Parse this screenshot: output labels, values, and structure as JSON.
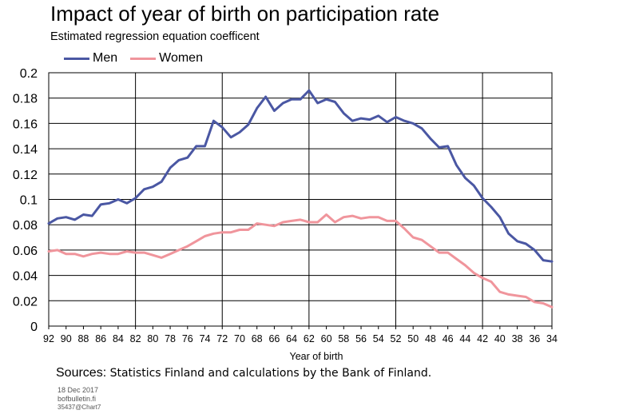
{
  "chart_data": {
    "type": "line",
    "title": "Impact of year of birth on participation rate",
    "subtitle": "Estimated regression equation coefficent",
    "xlabel": "Year of birth",
    "ylabel": "",
    "x": [
      92,
      91,
      90,
      89,
      88,
      87,
      86,
      85,
      84,
      83,
      82,
      81,
      80,
      79,
      78,
      77,
      76,
      75,
      74,
      73,
      72,
      71,
      70,
      69,
      68,
      67,
      66,
      65,
      64,
      63,
      62,
      61,
      60,
      59,
      58,
      57,
      56,
      55,
      54,
      53,
      52,
      51,
      50,
      49,
      48,
      47,
      46,
      45,
      44,
      43,
      42,
      41,
      40,
      39,
      38,
      37,
      36,
      35,
      34
    ],
    "x_tick_labels": [
      "92",
      "90",
      "88",
      "86",
      "84",
      "82",
      "80",
      "78",
      "76",
      "74",
      "72",
      "70",
      "68",
      "66",
      "64",
      "62",
      "60",
      "58",
      "56",
      "54",
      "52",
      "50",
      "48",
      "46",
      "44",
      "42",
      "40",
      "38",
      "36",
      "34"
    ],
    "ylim": [
      0,
      0.2
    ],
    "y_ticks": [
      "0",
      "0.02",
      "0.04",
      "0.06",
      "0.08",
      "0.1",
      "0.12",
      "0.14",
      "0.16",
      "0.18",
      "0.2"
    ],
    "grid": true,
    "legend_position": "top-left",
    "series": [
      {
        "name": "Men",
        "color": "#4a57a3",
        "values": [
          0.081,
          0.085,
          0.086,
          0.084,
          0.088,
          0.087,
          0.096,
          0.097,
          0.1,
          0.097,
          0.101,
          0.108,
          0.11,
          0.114,
          0.125,
          0.131,
          0.133,
          0.142,
          0.142,
          0.162,
          0.157,
          0.149,
          0.153,
          0.159,
          0.172,
          0.181,
          0.17,
          0.176,
          0.179,
          0.179,
          0.186,
          0.176,
          0.179,
          0.177,
          0.168,
          0.162,
          0.164,
          0.163,
          0.166,
          0.161,
          0.165,
          0.162,
          0.16,
          0.156,
          0.148,
          0.141,
          0.142,
          0.127,
          0.117,
          0.111,
          0.101,
          0.094,
          0.086,
          0.073,
          0.067,
          0.065,
          0.06,
          0.052,
          0.051
        ]
      },
      {
        "name": "Women",
        "color": "#f0959c",
        "values": [
          0.059,
          0.06,
          0.057,
          0.057,
          0.055,
          0.057,
          0.058,
          0.057,
          0.057,
          0.059,
          0.058,
          0.058,
          0.056,
          0.054,
          0.057,
          0.06,
          0.063,
          0.067,
          0.071,
          0.073,
          0.074,
          0.074,
          0.076,
          0.076,
          0.081,
          0.08,
          0.079,
          0.082,
          0.083,
          0.084,
          0.082,
          0.082,
          0.088,
          0.082,
          0.086,
          0.087,
          0.085,
          0.086,
          0.086,
          0.083,
          0.083,
          0.077,
          0.07,
          0.068,
          0.063,
          0.058,
          0.058,
          0.053,
          0.048,
          0.042,
          0.038,
          0.035,
          0.027,
          0.025,
          0.024,
          0.023,
          0.019,
          0.018,
          0.015
        ]
      }
    ],
    "axis_color": "#000000",
    "grid_color": "#000000"
  },
  "sources": {
    "label": "Sources: ",
    "text": "Statistics Finland and calculations by the Bank of Finland."
  },
  "footer": {
    "date": "18 Dec 2017",
    "site": "bofbulletin.fi",
    "chart_id": "35437@Chart7"
  }
}
